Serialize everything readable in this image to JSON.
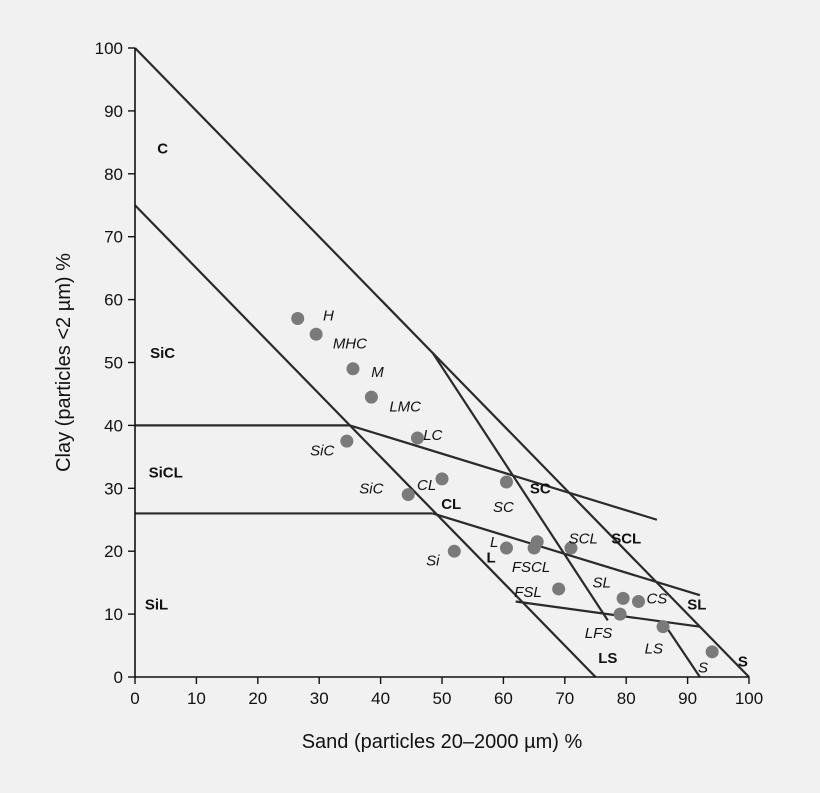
{
  "chart_data": {
    "type": "scatter",
    "title": "",
    "xlabel": "Sand (particles 20–2000 µm) %",
    "ylabel": "Clay (particles <2 µm) %",
    "xlim": [
      0,
      100
    ],
    "ylim": [
      0,
      100
    ],
    "x_ticks": [
      "0",
      "10",
      "20",
      "30",
      "40",
      "50",
      "60",
      "70",
      "80",
      "90",
      "100"
    ],
    "y_ticks": [
      "0",
      "10",
      "20",
      "30",
      "40",
      "50",
      "60",
      "70",
      "80",
      "90",
      "100"
    ],
    "grid": false,
    "boundaries": [
      {
        "from": [
          0,
          100
        ],
        "to": [
          100,
          0
        ]
      },
      {
        "from": [
          0,
          75
        ],
        "to": [
          75,
          0
        ]
      },
      {
        "from": [
          0,
          40
        ],
        "to": [
          35,
          40
        ]
      },
      {
        "from": [
          35,
          40
        ],
        "to": [
          85,
          25
        ]
      },
      {
        "from": [
          0,
          26
        ],
        "to": [
          48.5,
          26
        ]
      },
      {
        "from": [
          48.5,
          26
        ],
        "to": [
          92,
          13
        ]
      },
      {
        "from": [
          48.5,
          51.5
        ],
        "to": [
          77,
          9
        ]
      },
      {
        "from": [
          62,
          12
        ],
        "to": [
          92,
          8
        ]
      },
      {
        "from": [
          86.5,
          8
        ],
        "to": [
          92,
          0
        ]
      }
    ],
    "region_labels": [
      {
        "text": "C",
        "x": 4.5,
        "y": 84
      },
      {
        "text": "SiC",
        "x": 4.5,
        "y": 51.5
      },
      {
        "text": "SiCL",
        "x": 5,
        "y": 32.5
      },
      {
        "text": "SiL",
        "x": 3.5,
        "y": 11.5
      },
      {
        "text": "CL",
        "x": 51.5,
        "y": 27.5
      },
      {
        "text": "SC",
        "x": 66,
        "y": 30
      },
      {
        "text": "L",
        "x": 58,
        "y": 19
      },
      {
        "text": "SCL",
        "x": 80,
        "y": 22
      },
      {
        "text": "SL",
        "x": 91.5,
        "y": 11.5
      },
      {
        "text": "LS",
        "x": 77,
        "y": 3
      },
      {
        "text": "S",
        "x": 99,
        "y": 2.5
      }
    ],
    "points": [
      {
        "label": "H",
        "x": 26.5,
        "y": 57,
        "label_x": 31.5,
        "label_y": 57.5
      },
      {
        "label": "MHC",
        "x": 29.5,
        "y": 54.5,
        "label_x": 35,
        "label_y": 53
      },
      {
        "label": "M",
        "x": 35.5,
        "y": 49,
        "label_x": 39.5,
        "label_y": 48.5
      },
      {
        "label": "LMC",
        "x": 38.5,
        "y": 44.5,
        "label_x": 44,
        "label_y": 43
      },
      {
        "label": "LC",
        "x": 46,
        "y": 38,
        "label_x": 48.5,
        "label_y": 38.5
      },
      {
        "label": "SiC",
        "x": 34.5,
        "y": 37.5,
        "label_x": 30.5,
        "label_y": 36
      },
      {
        "label": "CL",
        "x": 50,
        "y": 31.5,
        "label_x": 47.5,
        "label_y": 30.5
      },
      {
        "label": "SiC",
        "x": 44.5,
        "y": 29,
        "label_x": 38.5,
        "label_y": 30
      },
      {
        "label": "SC",
        "x": 60.5,
        "y": 31,
        "label_x": 60,
        "label_y": 27
      },
      {
        "label": "Si",
        "x": 52,
        "y": 20,
        "label_x": 48.5,
        "label_y": 18.5
      },
      {
        "label": "L",
        "x": 60.5,
        "y": 20.5,
        "label_x": 58.5,
        "label_y": 21.5
      },
      {
        "label": "FSCL",
        "x": 65,
        "y": 20.5,
        "label_x": 64.5,
        "label_y": 17.5
      },
      {
        "label": "",
        "x": 65.5,
        "y": 21.5
      },
      {
        "label": "SCL",
        "x": 71,
        "y": 20.5,
        "label_x": 73,
        "label_y": 22
      },
      {
        "label": "FSL",
        "x": 69,
        "y": 14,
        "label_x": 64,
        "label_y": 13.5
      },
      {
        "label": "SL",
        "x": 79.5,
        "y": 12.5,
        "label_x": 76,
        "label_y": 15
      },
      {
        "label": "CS",
        "x": 82,
        "y": 12,
        "label_x": 85,
        "label_y": 12.5
      },
      {
        "label": "LFS",
        "x": 79,
        "y": 10,
        "label_x": 75.5,
        "label_y": 7
      },
      {
        "label": "LS",
        "x": 86,
        "y": 8,
        "label_x": 84.5,
        "label_y": 4.5
      },
      {
        "label": "S",
        "x": 94,
        "y": 4,
        "label_x": 92.5,
        "label_y": 1.5
      }
    ]
  }
}
